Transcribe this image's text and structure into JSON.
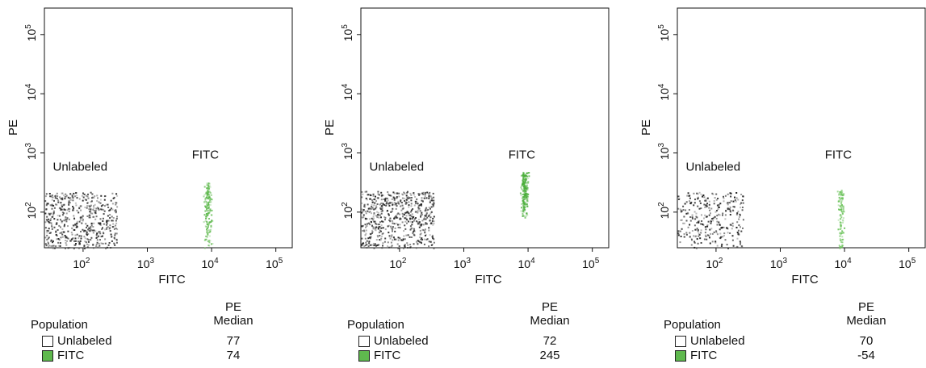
{
  "chart_data": [
    {
      "type": "scatter",
      "xlabel": "FITC",
      "ylabel": "PE",
      "xscale": "log",
      "yscale": "log",
      "xlim": [
        25,
        180000
      ],
      "ylim": [
        25,
        280000
      ],
      "xticks": [
        {
          "value": 100,
          "base": "10",
          "exp": "2"
        },
        {
          "value": 1000,
          "base": "10",
          "exp": "3"
        },
        {
          "value": 10000,
          "base": "10",
          "exp": "4"
        },
        {
          "value": 100000,
          "base": "10",
          "exp": "5"
        }
      ],
      "yticks": [
        {
          "value": 100,
          "base": "10",
          "exp": "2"
        },
        {
          "value": 1000,
          "base": "10",
          "exp": "3"
        },
        {
          "value": 10000,
          "base": "10",
          "exp": "4"
        },
        {
          "value": 100000,
          "base": "10",
          "exp": "5"
        }
      ],
      "series": [
        {
          "name": "Unlabeled",
          "color": "#222222",
          "x_range": [
            25,
            330
          ],
          "y_range": [
            25,
            220
          ],
          "count": 520
        },
        {
          "name": "FITC",
          "color": "#5fb94e",
          "x_range": [
            7000,
            10500
          ],
          "y_range": [
            25,
            330
          ],
          "count": 170
        }
      ],
      "annotations": [
        {
          "text": "Unlabeled",
          "x": 90,
          "y": 500
        },
        {
          "text": "FITC",
          "x": 8000,
          "y": 800
        }
      ],
      "table": {
        "header_line1": "PE",
        "header_line2": "Median",
        "population_label": "Population",
        "rows": [
          {
            "name": "Unlabeled",
            "color": "#ffffff",
            "value": "77"
          },
          {
            "name": "FITC",
            "color": "#5fb94e",
            "value": "74"
          }
        ]
      }
    },
    {
      "type": "scatter",
      "xlabel": "FITC",
      "ylabel": "PE",
      "xscale": "log",
      "yscale": "log",
      "xlim": [
        25,
        180000
      ],
      "ylim": [
        25,
        280000
      ],
      "xticks": [
        {
          "value": 100,
          "base": "10",
          "exp": "2"
        },
        {
          "value": 1000,
          "base": "10",
          "exp": "3"
        },
        {
          "value": 10000,
          "base": "10",
          "exp": "4"
        },
        {
          "value": 100000,
          "base": "10",
          "exp": "5"
        }
      ],
      "yticks": [
        {
          "value": 100,
          "base": "10",
          "exp": "2"
        },
        {
          "value": 1000,
          "base": "10",
          "exp": "3"
        },
        {
          "value": 10000,
          "base": "10",
          "exp": "4"
        },
        {
          "value": 100000,
          "base": "10",
          "exp": "5"
        }
      ],
      "series": [
        {
          "name": "Unlabeled",
          "color": "#222222",
          "x_range": [
            25,
            340
          ],
          "y_range": [
            25,
            230
          ],
          "count": 620
        },
        {
          "name": "FITC",
          "color": "#4caf3c",
          "x_range": [
            7200,
            10500
          ],
          "y_range": [
            80,
            480
          ],
          "count": 210
        }
      ],
      "annotations": [
        {
          "text": "Unlabeled",
          "x": 90,
          "y": 500
        },
        {
          "text": "FITC",
          "x": 8000,
          "y": 800
        }
      ],
      "table": {
        "header_line1": "PE",
        "header_line2": "Median",
        "population_label": "Population",
        "rows": [
          {
            "name": "Unlabeled",
            "color": "#ffffff",
            "value": "72"
          },
          {
            "name": "FITC",
            "color": "#5fb94e",
            "value": "245"
          }
        ]
      }
    },
    {
      "type": "scatter",
      "xlabel": "FITC",
      "ylabel": "PE",
      "xscale": "log",
      "yscale": "log",
      "xlim": [
        25,
        180000
      ],
      "ylim": [
        25,
        280000
      ],
      "xticks": [
        {
          "value": 100,
          "base": "10",
          "exp": "2"
        },
        {
          "value": 1000,
          "base": "10",
          "exp": "3"
        },
        {
          "value": 10000,
          "base": "10",
          "exp": "4"
        },
        {
          "value": 100000,
          "base": "10",
          "exp": "5"
        }
      ],
      "yticks": [
        {
          "value": 100,
          "base": "10",
          "exp": "2"
        },
        {
          "value": 1000,
          "base": "10",
          "exp": "3"
        },
        {
          "value": 10000,
          "base": "10",
          "exp": "4"
        },
        {
          "value": 100000,
          "base": "10",
          "exp": "5"
        }
      ],
      "series": [
        {
          "name": "Unlabeled",
          "color": "#111111",
          "x_range": [
            25,
            260
          ],
          "y_range": [
            25,
            220
          ],
          "count": 300
        },
        {
          "name": "FITC",
          "color": "#6cc35b",
          "x_range": [
            7500,
            10000
          ],
          "y_range": [
            25,
            250
          ],
          "count": 110
        }
      ],
      "annotations": [
        {
          "text": "Unlabeled",
          "x": 90,
          "y": 500
        },
        {
          "text": "FITC",
          "x": 8000,
          "y": 800
        }
      ],
      "table": {
        "header_line1": "PE",
        "header_line2": "Median",
        "population_label": "Population",
        "rows": [
          {
            "name": "Unlabeled",
            "color": "#ffffff",
            "value": "70"
          },
          {
            "name": "FITC",
            "color": "#5fb94e",
            "value": "-54"
          }
        ]
      }
    }
  ]
}
